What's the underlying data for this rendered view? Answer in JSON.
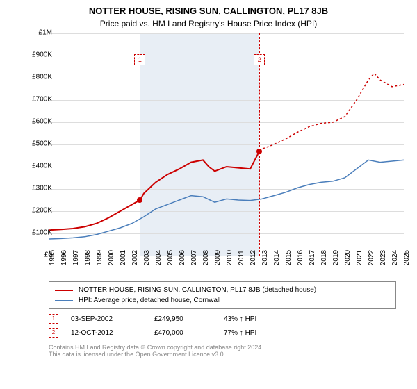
{
  "title": "NOTTER HOUSE, RISING SUN, CALLINGTON, PL17 8JB",
  "subtitle": "Price paid vs. HM Land Registry's House Price Index (HPI)",
  "chart": {
    "type": "line",
    "xlim": [
      1995,
      2025
    ],
    "ylim": [
      0,
      1000000
    ],
    "ytick_step": 100000,
    "ylabels": [
      "£0",
      "£100K",
      "£200K",
      "£300K",
      "£400K",
      "£500K",
      "£600K",
      "£700K",
      "£800K",
      "£900K",
      "£1M"
    ],
    "xlabels": [
      "1995",
      "1996",
      "1997",
      "1998",
      "1999",
      "2000",
      "2001",
      "2002",
      "2003",
      "2004",
      "2005",
      "2006",
      "2007",
      "2008",
      "2009",
      "2010",
      "2011",
      "2012",
      "2013",
      "2014",
      "2015",
      "2016",
      "2017",
      "2018",
      "2019",
      "2020",
      "2021",
      "2022",
      "2023",
      "2024",
      "2025"
    ],
    "background_color": "#ffffff",
    "grid_color": "#dddddd",
    "shaded_region": {
      "start": 2002.67,
      "end": 2012.78,
      "color": "#e8eef5"
    },
    "series": [
      {
        "name": "property",
        "color": "#cc0000",
        "width": 2,
        "data": [
          [
            1995,
            115000
          ],
          [
            1996,
            118000
          ],
          [
            1997,
            122000
          ],
          [
            1998,
            130000
          ],
          [
            1999,
            145000
          ],
          [
            2000,
            170000
          ],
          [
            2001,
            200000
          ],
          [
            2002,
            230000
          ],
          [
            2002.67,
            249950
          ],
          [
            2003,
            280000
          ],
          [
            2004,
            330000
          ],
          [
            2005,
            365000
          ],
          [
            2006,
            390000
          ],
          [
            2007,
            420000
          ],
          [
            2008,
            430000
          ],
          [
            2008.5,
            400000
          ],
          [
            2009,
            380000
          ],
          [
            2010,
            400000
          ],
          [
            2011,
            395000
          ],
          [
            2012,
            390000
          ],
          [
            2012.78,
            470000
          ]
        ]
      },
      {
        "name": "property_dotted",
        "color": "#cc0000",
        "width": 1.5,
        "dash": "3,3",
        "data": [
          [
            2012.78,
            470000
          ],
          [
            2013,
            480000
          ],
          [
            2014,
            500000
          ],
          [
            2015,
            525000
          ],
          [
            2016,
            555000
          ],
          [
            2017,
            580000
          ],
          [
            2018,
            595000
          ],
          [
            2019,
            600000
          ],
          [
            2020,
            625000
          ],
          [
            2021,
            700000
          ],
          [
            2022,
            790000
          ],
          [
            2022.5,
            820000
          ],
          [
            2023,
            790000
          ],
          [
            2024,
            760000
          ],
          [
            2025,
            770000
          ]
        ]
      },
      {
        "name": "hpi",
        "color": "#4a7ebb",
        "width": 1.5,
        "data": [
          [
            1995,
            75000
          ],
          [
            1996,
            77000
          ],
          [
            1997,
            80000
          ],
          [
            1998,
            85000
          ],
          [
            1999,
            95000
          ],
          [
            2000,
            110000
          ],
          [
            2001,
            125000
          ],
          [
            2002,
            145000
          ],
          [
            2003,
            175000
          ],
          [
            2004,
            210000
          ],
          [
            2005,
            230000
          ],
          [
            2006,
            250000
          ],
          [
            2007,
            270000
          ],
          [
            2008,
            265000
          ],
          [
            2009,
            240000
          ],
          [
            2010,
            255000
          ],
          [
            2011,
            250000
          ],
          [
            2012,
            248000
          ],
          [
            2013,
            255000
          ],
          [
            2014,
            270000
          ],
          [
            2015,
            285000
          ],
          [
            2016,
            305000
          ],
          [
            2017,
            320000
          ],
          [
            2018,
            330000
          ],
          [
            2019,
            335000
          ],
          [
            2020,
            350000
          ],
          [
            2021,
            390000
          ],
          [
            2022,
            430000
          ],
          [
            2023,
            420000
          ],
          [
            2024,
            425000
          ],
          [
            2025,
            430000
          ]
        ]
      }
    ],
    "markers": [
      {
        "label": "1",
        "x": 2002.67,
        "y": 249950,
        "color": "#cc0000"
      },
      {
        "label": "2",
        "x": 2012.78,
        "y": 470000,
        "color": "#cc0000"
      }
    ]
  },
  "legend": {
    "items": [
      {
        "color": "#cc0000",
        "width": 2,
        "label": "NOTTER HOUSE, RISING SUN, CALLINGTON, PL17 8JB (detached house)"
      },
      {
        "color": "#4a7ebb",
        "width": 1.5,
        "label": "HPI: Average price, detached house, Cornwall"
      }
    ]
  },
  "transactions": [
    {
      "marker": "1",
      "color": "#cc0000",
      "date": "03-SEP-2002",
      "price": "£249,950",
      "hpi": "43% ↑ HPI"
    },
    {
      "marker": "2",
      "color": "#cc0000",
      "date": "12-OCT-2012",
      "price": "£470,000",
      "hpi": "77% ↑ HPI"
    }
  ],
  "footer": {
    "line1": "Contains HM Land Registry data © Crown copyright and database right 2024.",
    "line2": "This data is licensed under the Open Government Licence v3.0."
  }
}
